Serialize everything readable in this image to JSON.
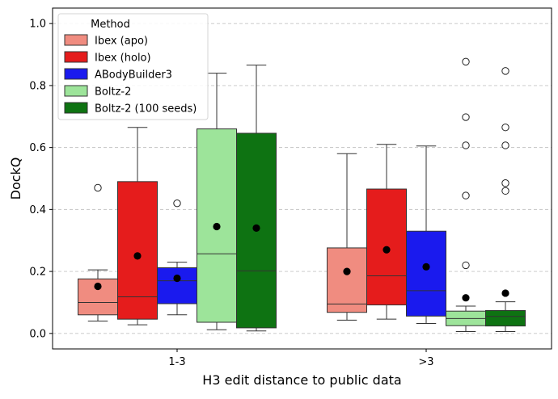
{
  "chart_data": {
    "type": "box",
    "title": "",
    "xlabel": "H3 edit distance to public data",
    "ylabel": "DockQ",
    "ylim": [
      -0.05,
      1.05
    ],
    "yticks": [
      0.0,
      0.2,
      0.4,
      0.6,
      0.8,
      1.0
    ],
    "ytick_labels": [
      "0.0",
      "0.2",
      "0.4",
      "0.6",
      "0.8",
      "1.0"
    ],
    "grid": "y-dashed",
    "legend": {
      "title": "Method",
      "placement": "top-left"
    },
    "categories": [
      "1-3",
      ">3"
    ],
    "series": [
      {
        "name": "Ibex (apo)",
        "color": "#f08c80",
        "boxes": [
          {
            "whisker_low": 0.04,
            "q1": 0.06,
            "median": 0.1,
            "q3": 0.176,
            "whisker_high": 0.205,
            "mean": 0.152,
            "outliers": [
              0.47
            ]
          },
          {
            "whisker_low": 0.043,
            "q1": 0.068,
            "median": 0.095,
            "q3": 0.276,
            "whisker_high": 0.58,
            "mean": 0.2,
            "outliers": []
          }
        ]
      },
      {
        "name": "Ibex (holo)",
        "color": "#e51c1c",
        "boxes": [
          {
            "whisker_low": 0.028,
            "q1": 0.046,
            "median": 0.118,
            "q3": 0.49,
            "whisker_high": 0.665,
            "mean": 0.25,
            "outliers": []
          },
          {
            "whisker_low": 0.046,
            "q1": 0.092,
            "median": 0.186,
            "q3": 0.466,
            "whisker_high": 0.61,
            "mean": 0.27,
            "outliers": []
          }
        ]
      },
      {
        "name": "ABodyBuilder3",
        "color": "#1a1aee",
        "boxes": [
          {
            "whisker_low": 0.06,
            "q1": 0.096,
            "median": 0.17,
            "q3": 0.212,
            "whisker_high": 0.23,
            "mean": 0.178,
            "outliers": [
              0.42
            ]
          },
          {
            "whisker_low": 0.032,
            "q1": 0.056,
            "median": 0.138,
            "q3": 0.33,
            "whisker_high": 0.605,
            "mean": 0.215,
            "outliers": []
          }
        ]
      },
      {
        "name": "Boltz-2",
        "color": "#9de49a",
        "boxes": [
          {
            "whisker_low": 0.012,
            "q1": 0.036,
            "median": 0.257,
            "q3": 0.66,
            "whisker_high": 0.84,
            "mean": 0.345,
            "outliers": []
          },
          {
            "whisker_low": 0.006,
            "q1": 0.025,
            "median": 0.048,
            "q3": 0.072,
            "whisker_high": 0.088,
            "mean": 0.115,
            "outliers": [
              0.22,
              0.445,
              0.607,
              0.698,
              0.877
            ]
          }
        ]
      },
      {
        "name": "Boltz-2 (100 seeds)",
        "color": "#0e7312",
        "boxes": [
          {
            "whisker_low": 0.008,
            "q1": 0.018,
            "median": 0.202,
            "q3": 0.646,
            "whisker_high": 0.866,
            "mean": 0.34,
            "outliers": []
          },
          {
            "whisker_low": 0.006,
            "q1": 0.024,
            "median": 0.055,
            "q3": 0.074,
            "whisker_high": 0.102,
            "mean": 0.13,
            "outliers": [
              0.46,
              0.485,
              0.607,
              0.665,
              0.847
            ]
          }
        ]
      }
    ]
  }
}
